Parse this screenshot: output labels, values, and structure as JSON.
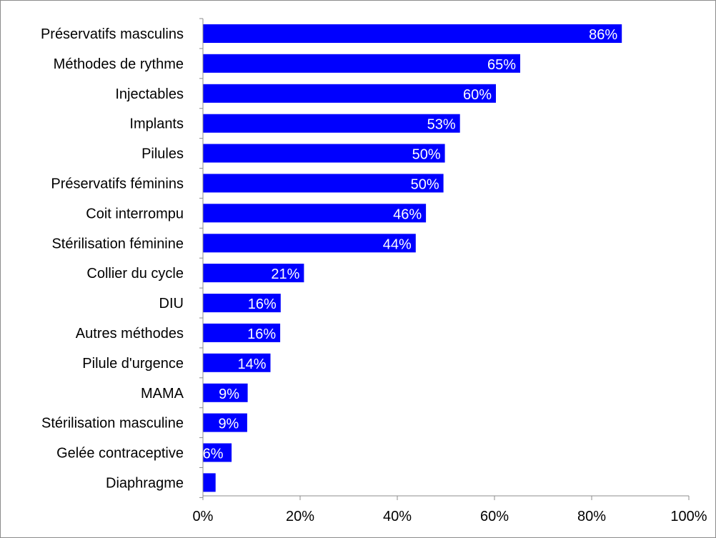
{
  "chart_data": {
    "type": "bar",
    "orientation": "horizontal",
    "categories": [
      "Préservatifs masculins",
      "Méthodes de rythme",
      "Injectables",
      "Implants",
      "Pilules",
      "Préservatifs féminins",
      "Coit interrompu",
      "Stérilisation féminine",
      "Collier du cycle",
      "DIU",
      "Autres méthodes",
      "Pilule d'urgence",
      "MAMA",
      "Stérilisation masculine",
      "Gelée contraceptive",
      "Diaphragme"
    ],
    "values": [
      86.2,
      65.3,
      60.3,
      52.9,
      49.8,
      49.5,
      45.9,
      43.8,
      20.8,
      16.0,
      15.9,
      13.9,
      9.2,
      9.1,
      5.9,
      2.6
    ],
    "data_labels": [
      "86%",
      "65%",
      "60%",
      "53%",
      "50%",
      "50%",
      "46%",
      "44%",
      "21%",
      "16%",
      "16%",
      "14%",
      "9%",
      "9%",
      "6%",
      ""
    ],
    "xlim": [
      0,
      100
    ],
    "x_ticks": [
      0,
      20,
      40,
      60,
      80,
      100
    ],
    "x_tick_labels": [
      "0%",
      "20%",
      "40%",
      "60%",
      "80%",
      "100%"
    ],
    "title": "",
    "xlabel": "",
    "ylabel": "",
    "grid": false,
    "legend": "none",
    "bar_color": "#0000ff",
    "label_color": "#ffffff"
  }
}
